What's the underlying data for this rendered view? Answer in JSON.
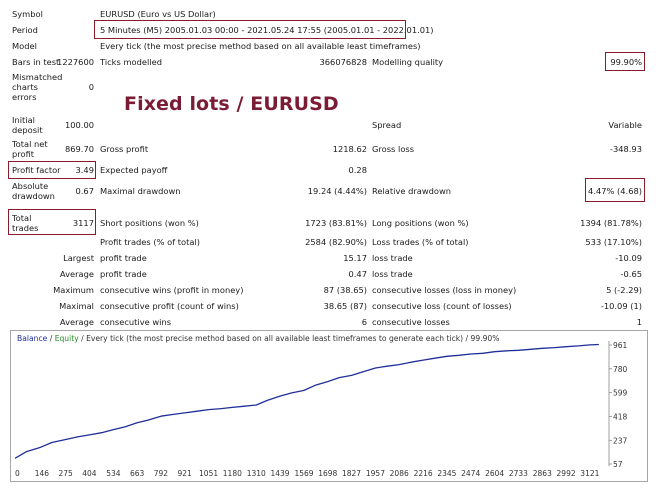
{
  "overlay_title": "Fixed lots / EURUSD",
  "header": [
    {
      "label": "Symbol",
      "value": "EURUSD (Euro vs US Dollar)"
    },
    {
      "label": "Period",
      "value": "5 Minutes (M5) 2005.01.03 00:00 - 2021.05.24 17:55 (2005.01.01 - 2022.01.01)"
    },
    {
      "label": "Model",
      "value": "Every tick (the most precise method based on all available least timeframes)"
    }
  ],
  "bars_in_test": {
    "label": "Bars in test",
    "value": "1227600"
  },
  "ticks_modelled": {
    "label": "Ticks modelled",
    "value": "366076828"
  },
  "modelling_quality": {
    "label": "Modelling quality",
    "value": "99.90%"
  },
  "mismatched": {
    "label1": "Mismatched",
    "label2": "charts",
    "label3": "errors",
    "value": "0"
  },
  "initial_deposit": {
    "label1": "Initial",
    "label2": "deposit",
    "value": "100.00"
  },
  "spread": {
    "label": "Spread",
    "value": "Variable"
  },
  "total_net_profit": {
    "label1": "Total net",
    "label2": "profit",
    "value": "869.70"
  },
  "gross_profit": {
    "label": "Gross profit",
    "value": "1218.62"
  },
  "gross_loss": {
    "label": "Gross loss",
    "value": "-348.93"
  },
  "profit_factor": {
    "label": "Profit factor",
    "value": "3.49"
  },
  "expected_payoff": {
    "label": "Expected payoff",
    "value": "0.28"
  },
  "absolute_drawdown": {
    "label1": "Absolute",
    "label2": "drawdown",
    "value": "0.67"
  },
  "maximal_drawdown": {
    "label": "Maximal drawdown",
    "value": "19.24 (4.44%)"
  },
  "relative_drawdown": {
    "label": "Relative drawdown",
    "value": "4.47% (4.68)"
  },
  "total_trades": {
    "label1": "Total",
    "label2": "trades",
    "value": "3117"
  },
  "short_positions": {
    "label": "Short positions (won %)",
    "value": "1723 (83.81%)"
  },
  "long_positions": {
    "label": "Long positions (won %)",
    "value": "1394 (81.78%)"
  },
  "profit_trades": {
    "label": "Profit trades (% of total)",
    "value": "2584 (82.90%)"
  },
  "loss_trades": {
    "label": "Loss trades (% of total)",
    "value": "533 (17.10%)"
  },
  "detail_rows": [
    {
      "prefix": "Largest",
      "left_label": "profit trade",
      "left_value": "15.17",
      "right_label": "loss trade",
      "right_value": "-10.09"
    },
    {
      "prefix": "Average",
      "left_label": "profit trade",
      "left_value": "0.47",
      "right_label": "loss trade",
      "right_value": "-0.65"
    },
    {
      "prefix": "Maximum",
      "left_label": "consecutive wins (profit in money)",
      "left_value": "87 (38.65)",
      "right_label": "consecutive losses (loss in money)",
      "right_value": "5 (-2.29)"
    },
    {
      "prefix": "Maximal",
      "left_label": "consecutive profit (count of wins)",
      "left_value": "38.65 (87)",
      "right_label": "consecutive loss (count of losses)",
      "right_value": "-10.09 (1)"
    },
    {
      "prefix": "Average",
      "left_label": "consecutive wins",
      "left_value": "6",
      "right_label": "consecutive losses",
      "right_value": "1"
    }
  ],
  "chart_data": {
    "type": "line",
    "legend": {
      "balance": "Balance",
      "separator": " / ",
      "equity": "Equity",
      "rest": " / Every tick (the most precise method based on all available least timeframes to generate each tick) / 99.90%"
    },
    "series_color": "#1f2f99",
    "x_ticks": [
      "0",
      "146",
      "275",
      "404",
      "534",
      "663",
      "792",
      "921",
      "1051",
      "1180",
      "1310",
      "1439",
      "1569",
      "1698",
      "1827",
      "1957",
      "2086",
      "2216",
      "2345",
      "2474",
      "2604",
      "2733",
      "2863",
      "2992",
      "3121"
    ],
    "y_ticks": [
      "961",
      "780",
      "599",
      "418",
      "237",
      "57"
    ],
    "xlim": [
      0,
      3225
    ],
    "ylim": [
      57,
      961
    ],
    "x": [
      0,
      60,
      140,
      200,
      275,
      340,
      404,
      470,
      534,
      600,
      663,
      720,
      792,
      850,
      921,
      990,
      1051,
      1120,
      1180,
      1240,
      1310,
      1370,
      1439,
      1500,
      1569,
      1630,
      1698,
      1760,
      1827,
      1890,
      1957,
      2020,
      2086,
      2150,
      2216,
      2280,
      2345,
      2410,
      2474,
      2540,
      2604,
      2670,
      2733,
      2800,
      2863,
      2930,
      2992,
      3060,
      3121,
      3170
    ],
    "values": [
      100,
      150,
      185,
      220,
      243,
      263,
      278,
      295,
      318,
      340,
      370,
      390,
      420,
      432,
      445,
      458,
      470,
      478,
      487,
      495,
      505,
      540,
      573,
      596,
      616,
      655,
      683,
      713,
      730,
      758,
      786,
      800,
      812,
      830,
      846,
      861,
      875,
      883,
      893,
      898,
      910,
      917,
      921,
      928,
      936,
      941,
      948,
      954,
      962,
      965
    ]
  }
}
